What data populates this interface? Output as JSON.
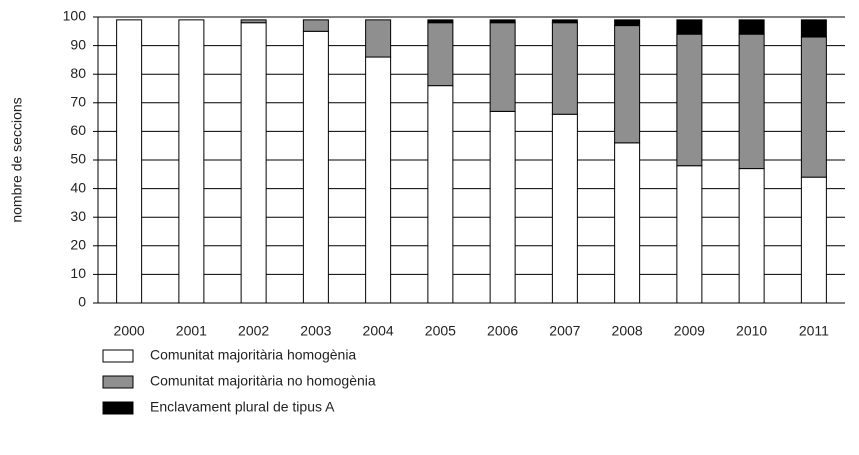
{
  "chart_data": {
    "type": "stacked-bar",
    "y_label": "nombre de seccions",
    "categories": [
      "2000",
      "2001",
      "2002",
      "2003",
      "2004",
      "2005",
      "2006",
      "2007",
      "2008",
      "2009",
      "2010",
      "2011"
    ],
    "series": [
      {
        "name": "Comunitat majoritària homogènia",
        "color": "#ffffff",
        "values": [
          99,
          99,
          98,
          95,
          86,
          76,
          67,
          66,
          56,
          48,
          47,
          44
        ]
      },
      {
        "name": "Comunitat majoritària no homogènia",
        "color": "#8f8f8f",
        "values": [
          0,
          0,
          1,
          4,
          13,
          22,
          31,
          32,
          41,
          46,
          47,
          49
        ]
      },
      {
        "name": "Enclavament plural de tipus A",
        "color": "#000000",
        "values": [
          0,
          0,
          0,
          0,
          0,
          1,
          1,
          1,
          2,
          5,
          5,
          6
        ]
      }
    ],
    "ylim": [
      0,
      100
    ],
    "yticks": [
      0,
      10,
      20,
      30,
      40,
      50,
      60,
      70,
      80,
      90,
      100
    ],
    "grid": true
  }
}
